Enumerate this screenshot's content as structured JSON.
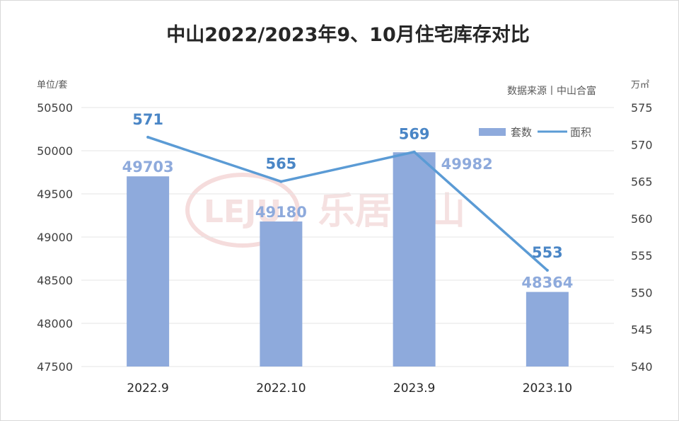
{
  "chart_data": {
    "type": "bar",
    "title": "中山2022/2023年9、10月住宅库存对比",
    "source": "数据来源丨中山合富",
    "watermark": "乐居中山",
    "categories": [
      "2022.9",
      "2022.10",
      "2023.9",
      "2023.10"
    ],
    "series": [
      {
        "name": "套数",
        "type": "bar",
        "axis": "left",
        "values": [
          49703,
          49180,
          49982,
          48364
        ],
        "color": "#8eaadc"
      },
      {
        "name": "面积",
        "type": "line",
        "axis": "right",
        "values": [
          571,
          565,
          569,
          553
        ],
        "color": "#5b9bd5"
      }
    ],
    "y_left": {
      "label": "单位/套",
      "min": 47500,
      "max": 50500,
      "ticks": [
        47500,
        48000,
        48500,
        49000,
        49500,
        50000,
        50500
      ]
    },
    "y_right": {
      "label": "万㎡",
      "min": 540,
      "max": 575,
      "ticks": [
        540,
        545,
        550,
        555,
        560,
        565,
        570,
        575
      ]
    },
    "grid": true,
    "legend_position": "top-right"
  }
}
